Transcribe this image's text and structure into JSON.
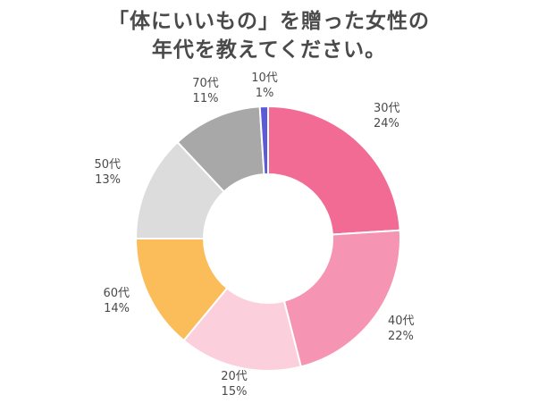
{
  "title_lines": [
    "「体にいいもの」を贈った女性の",
    "年代を教えてください。"
  ],
  "chart_data": {
    "type": "pie",
    "variant": "donut",
    "start": "top",
    "direction": "clockwise",
    "slices": [
      {
        "label": "30代",
        "value": 24,
        "display": "24%",
        "color": "#f26b95"
      },
      {
        "label": "40代",
        "value": 22,
        "display": "22%",
        "color": "#f595b3"
      },
      {
        "label": "20代",
        "value": 15,
        "display": "15%",
        "color": "#fbd0dc"
      },
      {
        "label": "60代",
        "value": 14,
        "display": "14%",
        "color": "#fbbc5a"
      },
      {
        "label": "50代",
        "value": 13,
        "display": "13%",
        "color": "#dcdcdc"
      },
      {
        "label": "70代",
        "value": 11,
        "display": "11%",
        "color": "#a8a8a8"
      },
      {
        "label": "10代",
        "value": 1,
        "display": "1%",
        "color": "#5b5bd6"
      }
    ]
  }
}
